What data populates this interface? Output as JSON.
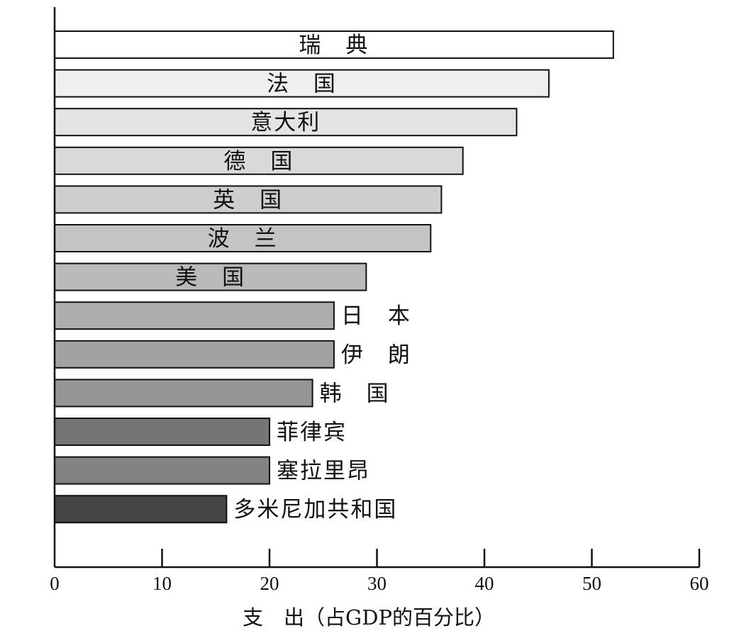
{
  "chart_data": {
    "type": "bar",
    "orientation": "horizontal",
    "categories": [
      "瑞　典",
      "法　国",
      "意大利",
      "德　国",
      "英　国",
      "波　兰",
      "美　国",
      "日　本",
      "伊　朗",
      "韩　国",
      "菲律宾",
      "塞拉里昂",
      "多米尼加共和国"
    ],
    "values": [
      52,
      46,
      43,
      38,
      36,
      35,
      29,
      26,
      26,
      24,
      20,
      20,
      16
    ],
    "fill_colors": [
      "#ffffff",
      "#efefef",
      "#e4e4e4",
      "#d9d9d9",
      "#cecece",
      "#c4c4c4",
      "#b9b9b9",
      "#aeaeae",
      "#a2a2a2",
      "#959595",
      "#757575",
      "#828282",
      "#444444"
    ],
    "label_inside": [
      true,
      true,
      true,
      true,
      true,
      true,
      true,
      false,
      false,
      false,
      false,
      false,
      false
    ],
    "xlabel": "支　出（占GDP的百分比）",
    "xlim": [
      0,
      60
    ],
    "xticks": [
      0,
      10,
      20,
      30,
      40,
      50,
      60
    ],
    "grid": false
  }
}
